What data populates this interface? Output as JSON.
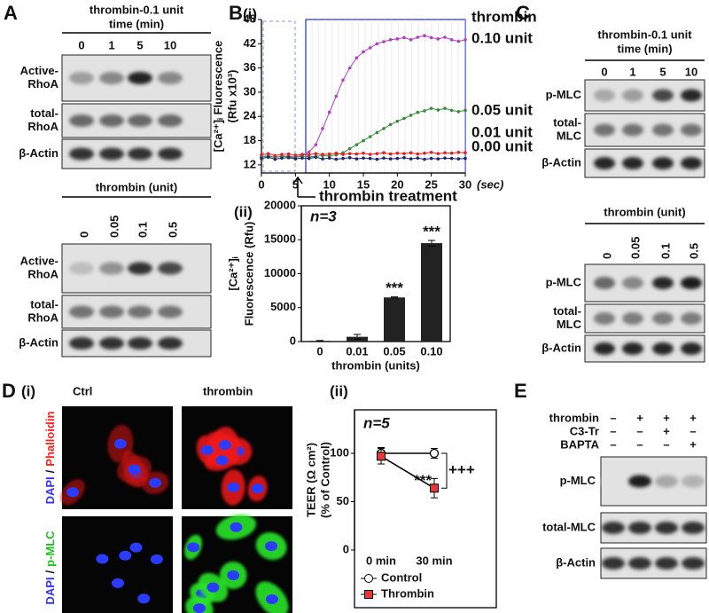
{
  "panels": {
    "A": {
      "letter": "A",
      "top": {
        "header": [
          "thrombin-0.1 unit",
          "time (min)"
        ],
        "lanes": [
          "0",
          "1",
          "5",
          "10"
        ],
        "rows": [
          [
            "Active-",
            "RhoA"
          ],
          [
            "total-",
            "RhoA"
          ],
          [
            "β-Actin"
          ]
        ]
      },
      "bottom": {
        "header": [
          "thrombin (unit)"
        ],
        "lanes": [
          "0",
          "0.05",
          "0.1",
          "0.5"
        ],
        "rows": [
          [
            "Active-",
            "RhoA"
          ],
          [
            "total-",
            "RhoA"
          ],
          [
            "β-Actin"
          ]
        ]
      }
    },
    "B": {
      "letter": "B",
      "sub1": "(i)",
      "sub2": "(ii)"
    },
    "C": {
      "letter": "C",
      "top": {
        "header": [
          "thrombin-0.1 unit",
          "time (min)"
        ],
        "lanes": [
          "0",
          "1",
          "5",
          "10"
        ],
        "rows": [
          [
            "p-MLC"
          ],
          [
            "total-",
            "MLC"
          ],
          [
            "β-Actin"
          ]
        ]
      },
      "bottom": {
        "header": [
          "thrombin (unit)"
        ],
        "lanes": [
          "0",
          "0.05",
          "0.1",
          "0.5"
        ],
        "rows": [
          [
            "p-MLC"
          ],
          [
            "total-",
            "MLC"
          ],
          [
            "β-Actin"
          ]
        ]
      }
    },
    "D": {
      "letter": "D",
      "sub1": "(i)",
      "sub2": "(ii)",
      "columns": [
        "Ctrl",
        "thrombin"
      ],
      "rows": [
        [
          "DAPI",
          "/",
          "Phalloidin"
        ],
        [
          "DAPI",
          "/",
          "p-MLC"
        ]
      ]
    },
    "E": {
      "letter": "E",
      "conditions": [
        {
          "name": "thrombin",
          "signs": [
            "–",
            "+",
            "+",
            "+"
          ]
        },
        {
          "name": "C3-Tr",
          "signs": [
            "–",
            "–",
            "+",
            "–"
          ]
        },
        {
          "name": "BAPTA",
          "signs": [
            "–",
            "–",
            "–",
            "+"
          ]
        }
      ],
      "rows": [
        [
          "p-MLC"
        ],
        [
          "total-MLC"
        ],
        [
          "β-Actin"
        ]
      ]
    }
  },
  "chart_data": [
    {
      "type": "line",
      "ylabel": [
        "[Ca²⁺]ᵢ Fluorescence",
        "(Rfu x10³)"
      ],
      "x_unit": "(sec)",
      "legend_title": "thrombin",
      "annotation": "thrombin treatment",
      "xlim": [
        0,
        30
      ],
      "ylim": [
        10,
        48
      ],
      "xticks": [
        0,
        5,
        10,
        15,
        20,
        25,
        30
      ],
      "yticks": [
        12,
        18,
        24,
        30,
        36,
        42,
        48
      ],
      "x": [
        0,
        1,
        2,
        3,
        4,
        5,
        6,
        7,
        8,
        9,
        10,
        11,
        12,
        13,
        14,
        15,
        16,
        17,
        18,
        19,
        20,
        21,
        22,
        23,
        24,
        25,
        26,
        27,
        28,
        29,
        30
      ],
      "series": [
        {
          "name": "0.10 unit",
          "color": "#b040c0",
          "values": [
            14,
            14.3,
            13.8,
            14.1,
            14.2,
            13.9,
            14.4,
            15.2,
            17,
            21,
            25,
            29,
            33,
            36,
            38.5,
            40,
            41,
            42,
            42.5,
            43,
            43.2,
            43.5,
            43,
            43.6,
            44,
            43.5,
            43.2,
            43.6,
            43,
            42.6,
            43
          ]
        },
        {
          "name": "0.05 unit",
          "color": "#3a8a3a",
          "values": [
            14,
            14.2,
            13.9,
            14.1,
            14,
            13.8,
            14.2,
            14,
            14.1,
            14.3,
            14.2,
            14.5,
            15,
            16,
            17,
            18,
            19,
            20,
            21,
            22,
            22.8,
            23.5,
            24.3,
            25,
            25.4,
            26,
            25.6,
            26,
            25.5,
            25.2,
            25.5
          ]
        },
        {
          "name": "0.01 unit",
          "color": "#e02020",
          "values": [
            14.5,
            14.8,
            14.3,
            14.6,
            14.7,
            14.4,
            14.6,
            14.5,
            14.8,
            14.6,
            14.7,
            14.9,
            14.6,
            14.8,
            14.7,
            14.9,
            14.6,
            14.8,
            15,
            14.7,
            14.9,
            14.8,
            15,
            14.7,
            14.9,
            15.1,
            14.8,
            15,
            14.9,
            15.1,
            15
          ]
        },
        {
          "name": "0.00 unit",
          "color": "#1a2a6a",
          "values": [
            13.6,
            13.9,
            13.4,
            13.7,
            13.8,
            13.5,
            13.7,
            13.6,
            13.9,
            13.5,
            13.7,
            13.4,
            13.6,
            13.8,
            13.5,
            13.7,
            13.6,
            13.4,
            13.7,
            13.5,
            13.6,
            13.8,
            13.5,
            13.7,
            13.4,
            13.6,
            13.5,
            13.7,
            13.6,
            13.5,
            13.6
          ]
        }
      ]
    },
    {
      "type": "bar",
      "ylabel": [
        "[Ca²⁺]ᵢ",
        "Fluorescence (Rfu)"
      ],
      "xlabel": "thrombin (units)",
      "annotation": "n=3",
      "color": "#222222",
      "categories": [
        "0",
        "0.01",
        "0.05",
        "0.10"
      ],
      "values": [
        100,
        700,
        6500,
        14500
      ],
      "errors": [
        50,
        350,
        80,
        400
      ],
      "significance": [
        null,
        null,
        "***",
        "***"
      ],
      "ylim": [
        0,
        20000
      ],
      "yticks": [
        0,
        5000,
        10000,
        15000,
        20000
      ]
    },
    {
      "type": "line",
      "ylabel": [
        "TEER (Ω cm²)",
        "(% of Control)"
      ],
      "annotation": "n=5",
      "significance": "***",
      "comparison": "+++",
      "categories": [
        "0 min",
        "30 min"
      ],
      "ylim": [
        0,
        145
      ],
      "yticks": [
        0,
        50,
        100
      ],
      "series": [
        {
          "name": "Control",
          "color": "#ffffff",
          "marker": "circle",
          "values": [
            100,
            100
          ],
          "errors": [
            6,
            5
          ]
        },
        {
          "name": "Thrombin",
          "color": "#e03a3a",
          "marker": "square",
          "values": [
            97,
            64
          ],
          "errors": [
            8,
            10
          ]
        }
      ]
    }
  ]
}
